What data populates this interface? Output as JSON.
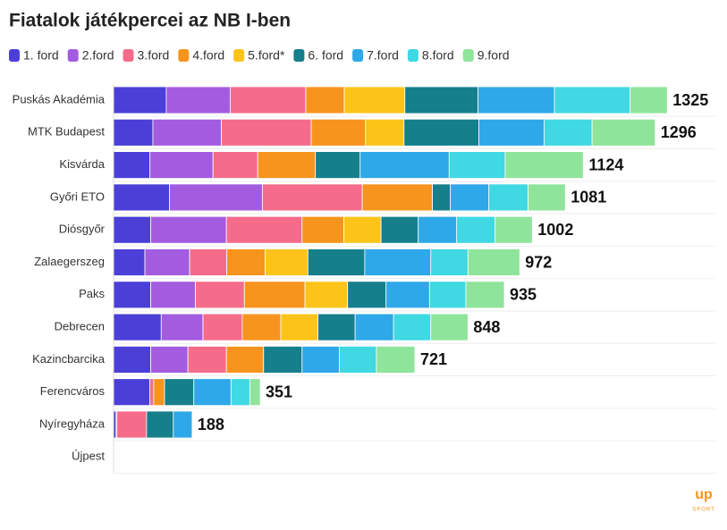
{
  "chart_data": {
    "type": "stacked-barh",
    "title": "Fiatalok játékpercei az NB I-ben",
    "categories": [
      "Puskás Akadémia",
      "MTK Budapest",
      "Kisvárda",
      "Győri ETO",
      "Diósgyőr",
      "Zalaegerszeg",
      "Paks",
      "Debrecen",
      "Kazincbarcika",
      "Ferencváros",
      "Nyíregyháza",
      "Újpest"
    ],
    "series": [
      {
        "name": "1. ford",
        "color": "#4b3fd8",
        "values": [
          126,
          94,
          87,
          134,
          89,
          75,
          89,
          114,
          89,
          87,
          6,
          0
        ]
      },
      {
        "name": "2.ford",
        "color": "#a35ce0",
        "values": [
          153,
          164,
          151,
          222,
          181,
          107,
          107,
          100,
          89,
          0,
          2,
          0
        ]
      },
      {
        "name": "3.ford",
        "color": "#f56c8a",
        "values": [
          181,
          215,
          107,
          239,
          181,
          89,
          117,
          94,
          92,
          9,
          71,
          0
        ]
      },
      {
        "name": "4.ford",
        "color": "#f7941d",
        "values": [
          92,
          130,
          138,
          168,
          100,
          92,
          145,
          92,
          89,
          26,
          0,
          0
        ]
      },
      {
        "name": "5.ford*",
        "color": "#fcc419",
        "values": [
          145,
          92,
          0,
          0,
          89,
          102,
          102,
          89,
          0,
          0,
          0,
          0
        ]
      },
      {
        "name": "6. ford",
        "color": "#157f8c",
        "values": [
          175,
          179,
          107,
          43,
          89,
          136,
          92,
          89,
          92,
          70,
          64,
          0
        ]
      },
      {
        "name": "7.ford",
        "color": "#2ea8e8",
        "values": [
          183,
          156,
          213,
          92,
          92,
          158,
          104,
          92,
          89,
          89,
          45,
          0
        ]
      },
      {
        "name": "8.ford",
        "color": "#3fd8e3",
        "values": [
          181,
          115,
          134,
          94,
          92,
          89,
          87,
          89,
          89,
          45,
          0,
          0
        ]
      },
      {
        "name": "9.ford",
        "color": "#8fe49b",
        "values": [
          89,
          151,
          187,
          89,
          89,
          124,
          92,
          89,
          92,
          25,
          0,
          0
        ]
      }
    ],
    "totals": [
      1325,
      1296,
      1124,
      1081,
      1002,
      972,
      935,
      848,
      721,
      351,
      188
    ],
    "xlim": [
      0,
      1440
    ],
    "logo": {
      "main": "up",
      "sub": "SPORT"
    }
  }
}
